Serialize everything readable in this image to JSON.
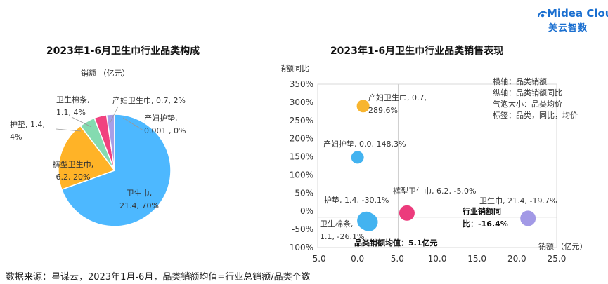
{
  "brand": {
    "name": "Midea Cloud",
    "sub": "美云智数",
    "color": "#1a6fd0"
  },
  "footer": "数据来源：星谋云，2023年1月-6月，品类销额均值=行业总销额/品类个数",
  "chart_data": [
    {
      "type": "pie",
      "title": "2023年1-6月卫生巾行业品类构成",
      "unit_label": "销额  （亿元）",
      "slices": [
        {
          "name": "卫生巾",
          "value": 21.4,
          "pct": "70%",
          "label": [
            "卫生巾,",
            "21.4, 70%"
          ],
          "color": "#4db8ff"
        },
        {
          "name": "裤型卫生巾",
          "value": 6.2,
          "pct": "20%",
          "label": [
            "裤型卫生巾,",
            "6.2, 20%"
          ],
          "color": "#ffb327"
        },
        {
          "name": "护垫",
          "value": 1.4,
          "pct": "4%",
          "label": [
            "护垫, 1.4,",
            "4%"
          ],
          "color": "#84dbb0"
        },
        {
          "name": "卫生棉条",
          "value": 1.1,
          "pct": "4%",
          "label": [
            "卫生棉条,",
            "1.1, 4%"
          ],
          "color": "#f1427f"
        },
        {
          "name": "产妇卫生巾",
          "value": 0.7,
          "pct": "2%",
          "label": [
            "产妇卫生巾, 0.7, 2%"
          ],
          "color": "#a79ee6"
        },
        {
          "name": "产妇护垫",
          "value": 0.001,
          "pct": "0%",
          "label": [
            "产妇护垫,",
            "0.001 , 0%"
          ],
          "color": "#f2a73b"
        }
      ]
    },
    {
      "type": "scatter",
      "title": "2023年1-6月卫生巾行业品类销售表现",
      "ylabel": "销额同比",
      "xlabel": "销额  （亿元）",
      "xlim": [
        -5,
        25
      ],
      "ylim": [
        -100,
        350
      ],
      "xticks": [
        "-5.0",
        "0.0",
        "5.0",
        "10.0",
        "15.0",
        "20.0",
        "25.0"
      ],
      "yticks": [
        "-100%",
        "-50%",
        "0%",
        "50%",
        "100%",
        "150%",
        "200%",
        "250%",
        "300%",
        "350%"
      ],
      "legend": [
        "横轴：品类销额",
        "纵轴：品类销额同比",
        "气泡大小：品类均价",
        "标签：品类，同比，均价"
      ],
      "points": [
        {
          "name": "产妇卫生巾",
          "x": 0.7,
          "y": 289.6,
          "color": "#f8b52f",
          "r": 9,
          "label": [
            "产妇卫生巾, 0.7,",
            "289.6%"
          ]
        },
        {
          "name": "产妇护垫",
          "x": 0.0,
          "y": 148.3,
          "color": "#43b3f0",
          "r": 9,
          "label": [
            "产妇护垫, 0.0, 148.3%"
          ]
        },
        {
          "name": "护垫",
          "x": 1.4,
          "y": -30.1,
          "color": "#43b3f0",
          "r": 13,
          "label": [
            "护垫, 1.4, -30.1%"
          ]
        },
        {
          "name": "卫生棉条",
          "x": 1.1,
          "y": -26.1,
          "color": "#43b3f0",
          "r": 13,
          "label": [
            "卫生棉条,",
            "1.1, -26.1%"
          ]
        },
        {
          "name": "裤型卫生巾",
          "x": 6.2,
          "y": -5.0,
          "color": "#ec3b7c",
          "r": 11,
          "label": [
            "裤型卫生巾, 6.2, -5.0%"
          ]
        },
        {
          "name": "卫生巾",
          "x": 21.4,
          "y": -19.7,
          "color": "#a299e6",
          "r": 11,
          "label": [
            "卫生巾, 21.4, -19.7%"
          ]
        }
      ],
      "ref_lines": {
        "x_value": 5.1,
        "x_label": "品类销额均值：5.1亿元",
        "y_value": -16.4,
        "y_label": [
          "行业销额同",
          "比：-16.4%"
        ]
      }
    }
  ]
}
